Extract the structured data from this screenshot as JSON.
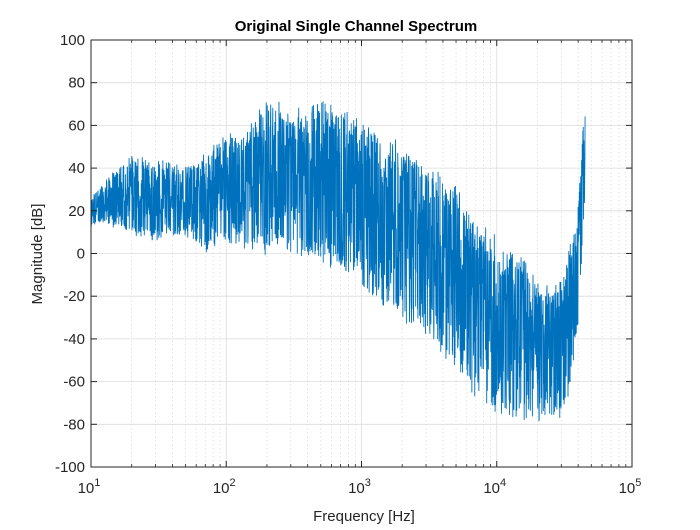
{
  "chart_data": {
    "type": "line",
    "title": "Original Single Channel Spectrum",
    "xlabel": "Frequency [Hz]",
    "ylabel": "Magnitude [dB]",
    "xscale": "log",
    "xlim": [
      10,
      100000
    ],
    "ylim": [
      -100,
      100
    ],
    "grid": true,
    "minor_grid": true,
    "x_ticks": [
      {
        "base": "10",
        "exp": "1"
      },
      {
        "base": "10",
        "exp": "2"
      },
      {
        "base": "10",
        "exp": "3"
      },
      {
        "base": "10",
        "exp": "4"
      },
      {
        "base": "10",
        "exp": "5"
      }
    ],
    "y_ticks": [
      "-100",
      "-80",
      "-60",
      "-40",
      "-20",
      "0",
      "20",
      "40",
      "60",
      "80",
      "100"
    ],
    "series": [
      {
        "color": "#0072BD",
        "envelope": {
          "x": [
            10,
            12,
            15,
            20,
            30,
            50,
            70,
            100,
            150,
            200,
            300,
            500,
            700,
            1000,
            1500,
            2000,
            3000,
            5000,
            7000,
            10000,
            15000,
            20000,
            25000,
            30000,
            35000,
            40000,
            43000,
            45000
          ],
          "upper": [
            26,
            33,
            40,
            46,
            44,
            42,
            47,
            56,
            60,
            75,
            68,
            72,
            68,
            64,
            58,
            52,
            45,
            32,
            18,
            8,
            0,
            -12,
            -15,
            -8,
            5,
            25,
            55,
            80
          ],
          "lower": [
            12,
            14,
            12,
            8,
            6,
            8,
            0,
            4,
            2,
            -2,
            0,
            -5,
            -8,
            -15,
            -25,
            -32,
            -40,
            -55,
            -68,
            -75,
            -78,
            -80,
            -82,
            -76,
            -65,
            -35,
            0,
            20
          ]
        }
      }
    ]
  }
}
